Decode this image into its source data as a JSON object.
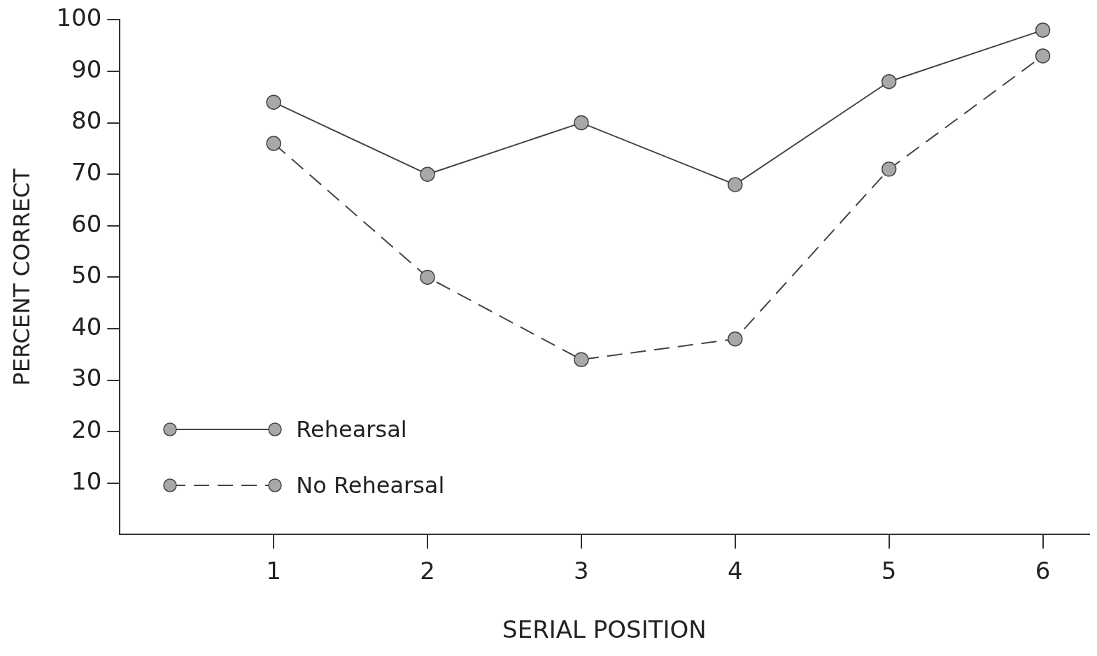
{
  "chart_data": {
    "type": "line",
    "xlabel": "SERIAL POSITION",
    "ylabel": "PERCENT CORRECT",
    "x": [
      1,
      2,
      3,
      4,
      5,
      6
    ],
    "series": [
      {
        "name": "Rehearsal",
        "color": "#444444",
        "line_style": "solid",
        "values": [
          84,
          70,
          80,
          68,
          88,
          98
        ]
      },
      {
        "name": "No Rehearsal",
        "color": "#444444",
        "line_style": "dashed",
        "values": [
          76,
          50,
          34,
          38,
          71,
          93
        ]
      }
    ],
    "xlim": [
      0,
      6.3
    ],
    "xticks": [
      1,
      2,
      3,
      4,
      5,
      6
    ],
    "ylim": [
      0,
      100
    ],
    "yticks": [
      10,
      20,
      30,
      40,
      50,
      60,
      70,
      80,
      90,
      100
    ],
    "grid": false,
    "legend": "bottom left",
    "marker": "circle"
  }
}
